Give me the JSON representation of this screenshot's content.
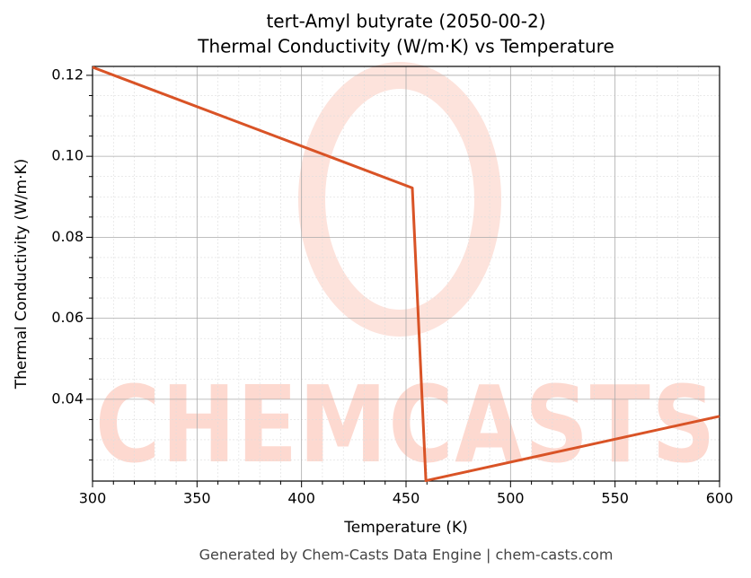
{
  "chart_data": {
    "type": "line",
    "title": "tert-Amyl butyrate (2050-00-2)",
    "subtitle": "Thermal Conductivity (W/m·K) vs Temperature",
    "x_label": "Temperature (K)",
    "y_label": "Thermal Conductivity (W/m·K)",
    "watermark": "CHEMCASTS",
    "footer": "Generated by Chem-Casts Data Engine | chem-casts.com",
    "x": [
      300,
      453,
      459.5,
      600
    ],
    "series": [
      {
        "name": "Thermal Conductivity",
        "color": "#d95326",
        "values": [
          0.122,
          0.0922,
          0.0199,
          0.0358
        ]
      }
    ],
    "xlim": [
      300,
      600
    ],
    "xticks": [
      300,
      350,
      400,
      450,
      500,
      550,
      600
    ],
    "ylim": [
      0.0198,
      0.1222
    ],
    "yticks": [
      0.04,
      0.06,
      0.08,
      {
        "value": 0.1,
        "label": "0.10"
      },
      0.12
    ],
    "grid": true
  }
}
